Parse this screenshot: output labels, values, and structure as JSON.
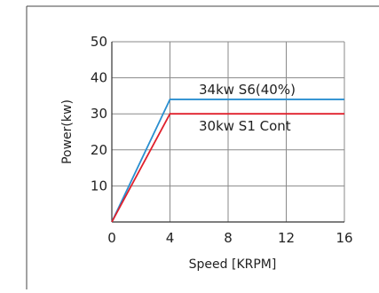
{
  "chart_data": {
    "type": "line",
    "title": "",
    "xlabel": "Speed [KRPM]",
    "ylabel": "Power(kw)",
    "xlim": [
      0,
      16
    ],
    "ylim": [
      0,
      50
    ],
    "x_ticks": [
      0,
      4,
      8,
      12,
      16
    ],
    "y_ticks": [
      10,
      20,
      30,
      40,
      50
    ],
    "grid": true,
    "series": [
      {
        "name": "34kw S6(40%)",
        "color": "#2a8fd0",
        "points": [
          [
            0,
            0
          ],
          [
            4,
            34
          ],
          [
            16,
            34
          ]
        ]
      },
      {
        "name": "30kw S1 Cont",
        "color": "#e0202c",
        "points": [
          [
            0,
            0
          ],
          [
            4,
            30
          ],
          [
            16,
            30
          ]
        ]
      }
    ]
  }
}
